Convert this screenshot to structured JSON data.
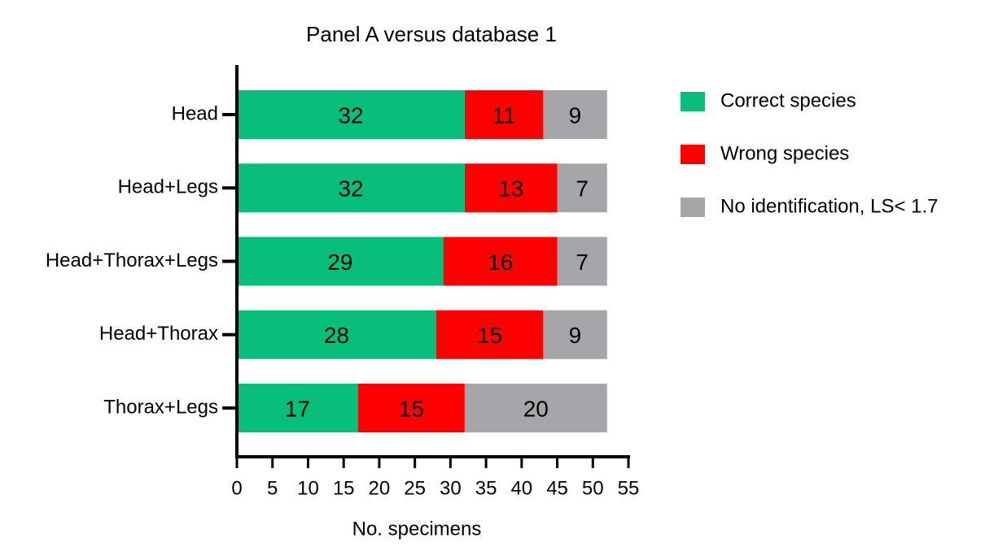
{
  "chart_data": {
    "type": "stacked-bar-horizontal",
    "title": "Panel A versus database 1",
    "x_label": "No. specimens",
    "categories": [
      "Head",
      "Head+Legs",
      "Head+Thorax+Legs",
      "Head+Thorax",
      "Thorax+Legs"
    ],
    "series": [
      {
        "name": "Correct species",
        "color": "#07bf7a",
        "values": [
          32,
          32,
          29,
          28,
          17
        ]
      },
      {
        "name": "Wrong species",
        "color": "#ff0000",
        "values": [
          11,
          13,
          16,
          15,
          15
        ]
      },
      {
        "name": "No identification, LS< 1.7",
        "color": "#a6a6aa",
        "values": [
          9,
          7,
          7,
          9,
          20
        ]
      }
    ],
    "xlim": [
      0,
      55
    ],
    "xticks": [
      0,
      5,
      10,
      15,
      20,
      25,
      30,
      35,
      40,
      45,
      50,
      55
    ],
    "legend": "right",
    "grid": false
  }
}
